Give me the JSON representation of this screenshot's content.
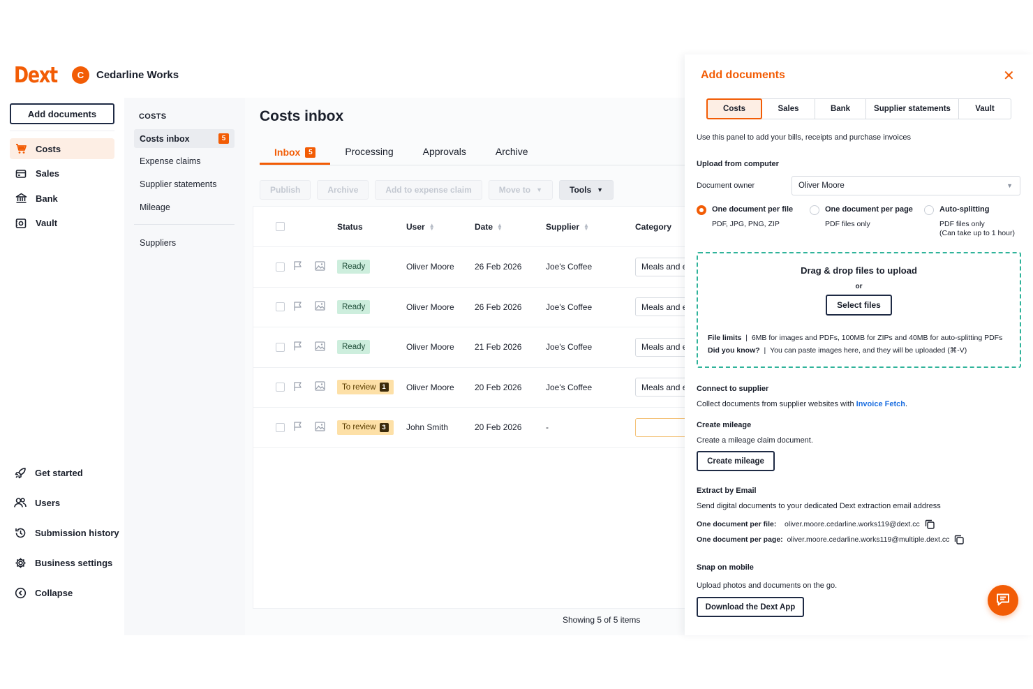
{
  "brand": {
    "logo_text": "Dext",
    "color": "#f25c05"
  },
  "org": {
    "initial": "C",
    "name": "Cedarline Works"
  },
  "left_nav": {
    "add_documents_label": "Add documents",
    "items": [
      {
        "label": "Costs",
        "icon": "cart-icon",
        "active": true
      },
      {
        "label": "Sales",
        "icon": "sales-icon"
      },
      {
        "label": "Bank",
        "icon": "bank-icon"
      },
      {
        "label": "Vault",
        "icon": "vault-icon"
      }
    ],
    "bottom_items": [
      {
        "label": "Get started",
        "icon": "rocket-icon"
      },
      {
        "label": "Users",
        "icon": "users-icon"
      },
      {
        "label": "Submission history",
        "icon": "history-icon"
      },
      {
        "label": "Business settings",
        "icon": "gear-icon"
      },
      {
        "label": "Collapse",
        "icon": "collapse-icon"
      }
    ]
  },
  "subnav": {
    "title": "COSTS",
    "items": [
      {
        "label": "Costs inbox",
        "badge": "5",
        "active": true
      },
      {
        "label": "Expense claims"
      },
      {
        "label": "Supplier statements"
      },
      {
        "label": "Mileage"
      }
    ],
    "suppliers_label": "Suppliers"
  },
  "main": {
    "title": "Costs inbox",
    "tabs": [
      {
        "label": "Inbox",
        "badge": "5",
        "active": true
      },
      {
        "label": "Processing"
      },
      {
        "label": "Approvals"
      },
      {
        "label": "Archive"
      }
    ],
    "toolbar": {
      "publish": "Publish",
      "archive": "Archive",
      "add_to_expense_claim": "Add to expense claim",
      "move_to": "Move to",
      "tools": "Tools"
    },
    "columns": {
      "status": "Status",
      "user": "User",
      "date": "Date",
      "supplier": "Supplier",
      "category": "Category"
    },
    "rows": [
      {
        "status": "Ready",
        "status_type": "ready",
        "count": "",
        "user": "Oliver Moore",
        "date": "26 Feb 2026",
        "supplier": "Joe's Coffee",
        "category": "Meals and entertainment"
      },
      {
        "status": "Ready",
        "status_type": "ready",
        "count": "",
        "user": "Oliver Moore",
        "date": "26 Feb 2026",
        "supplier": "Joe's Coffee",
        "category": "Meals and entertainment"
      },
      {
        "status": "Ready",
        "status_type": "ready",
        "count": "",
        "user": "Oliver Moore",
        "date": "21 Feb 2026",
        "supplier": "Joe's Coffee",
        "category": "Meals and entertainment"
      },
      {
        "status": "To review",
        "status_type": "review",
        "count": "1",
        "user": "Oliver Moore",
        "date": "20 Feb 2026",
        "supplier": "Joe's Coffee",
        "category": "Meals and entertainment"
      },
      {
        "status": "To review",
        "status_type": "review",
        "count": "3",
        "user": "John Smith",
        "date": "20 Feb 2026",
        "supplier": "-",
        "category": ""
      }
    ],
    "footer": "Showing 5 of 5 items"
  },
  "panel": {
    "title": "Add documents",
    "tabs": [
      {
        "label": "Costs",
        "active": true
      },
      {
        "label": "Sales"
      },
      {
        "label": "Bank"
      },
      {
        "label": "Supplier statements"
      },
      {
        "label": "Vault"
      }
    ],
    "intro": "Use this panel to add your bills, receipts and purchase invoices",
    "upload_heading": "Upload from computer",
    "owner_label": "Document owner",
    "owner_value": "Oliver Moore",
    "radio_options": [
      {
        "title": "One document per file",
        "sub": "PDF, JPG, PNG, ZIP",
        "selected": true
      },
      {
        "title": "One document per page",
        "sub": "PDF files only",
        "selected": false
      },
      {
        "title": "Auto-splitting",
        "sub": "PDF files only",
        "sub2": "(Can take up to 1 hour)",
        "selected": false
      }
    ],
    "dropzone": {
      "title": "Drag & drop files to upload",
      "or": "or",
      "select_files": "Select files",
      "limits_label": "File limits",
      "limits_text": "6MB for images and PDFs, 100MB for ZIPs and 40MB for auto-splitting PDFs",
      "tip_label": "Did you know?",
      "tip_text": "You can paste images here, and they will be uploaded (⌘-V)"
    },
    "connect": {
      "heading": "Connect to supplier",
      "text": "Collect documents from supplier websites with",
      "link": "Invoice Fetch"
    },
    "mileage": {
      "heading": "Create mileage",
      "text": "Create a mileage claim document.",
      "button": "Create mileage"
    },
    "email": {
      "heading": "Extract by Email",
      "text": "Send digital documents to your dedicated Dext extraction email address",
      "per_file_label": "One document per file:",
      "per_file_value": "oliver.moore.cedarline.works119@dext.cc",
      "per_page_label": "One document per page:",
      "per_page_value": "oliver.moore.cedarline.works119@multiple.dext.cc"
    },
    "mobile": {
      "heading": "Snap on mobile",
      "text": "Upload photos and documents on the go.",
      "button": "Download the Dext App"
    }
  }
}
